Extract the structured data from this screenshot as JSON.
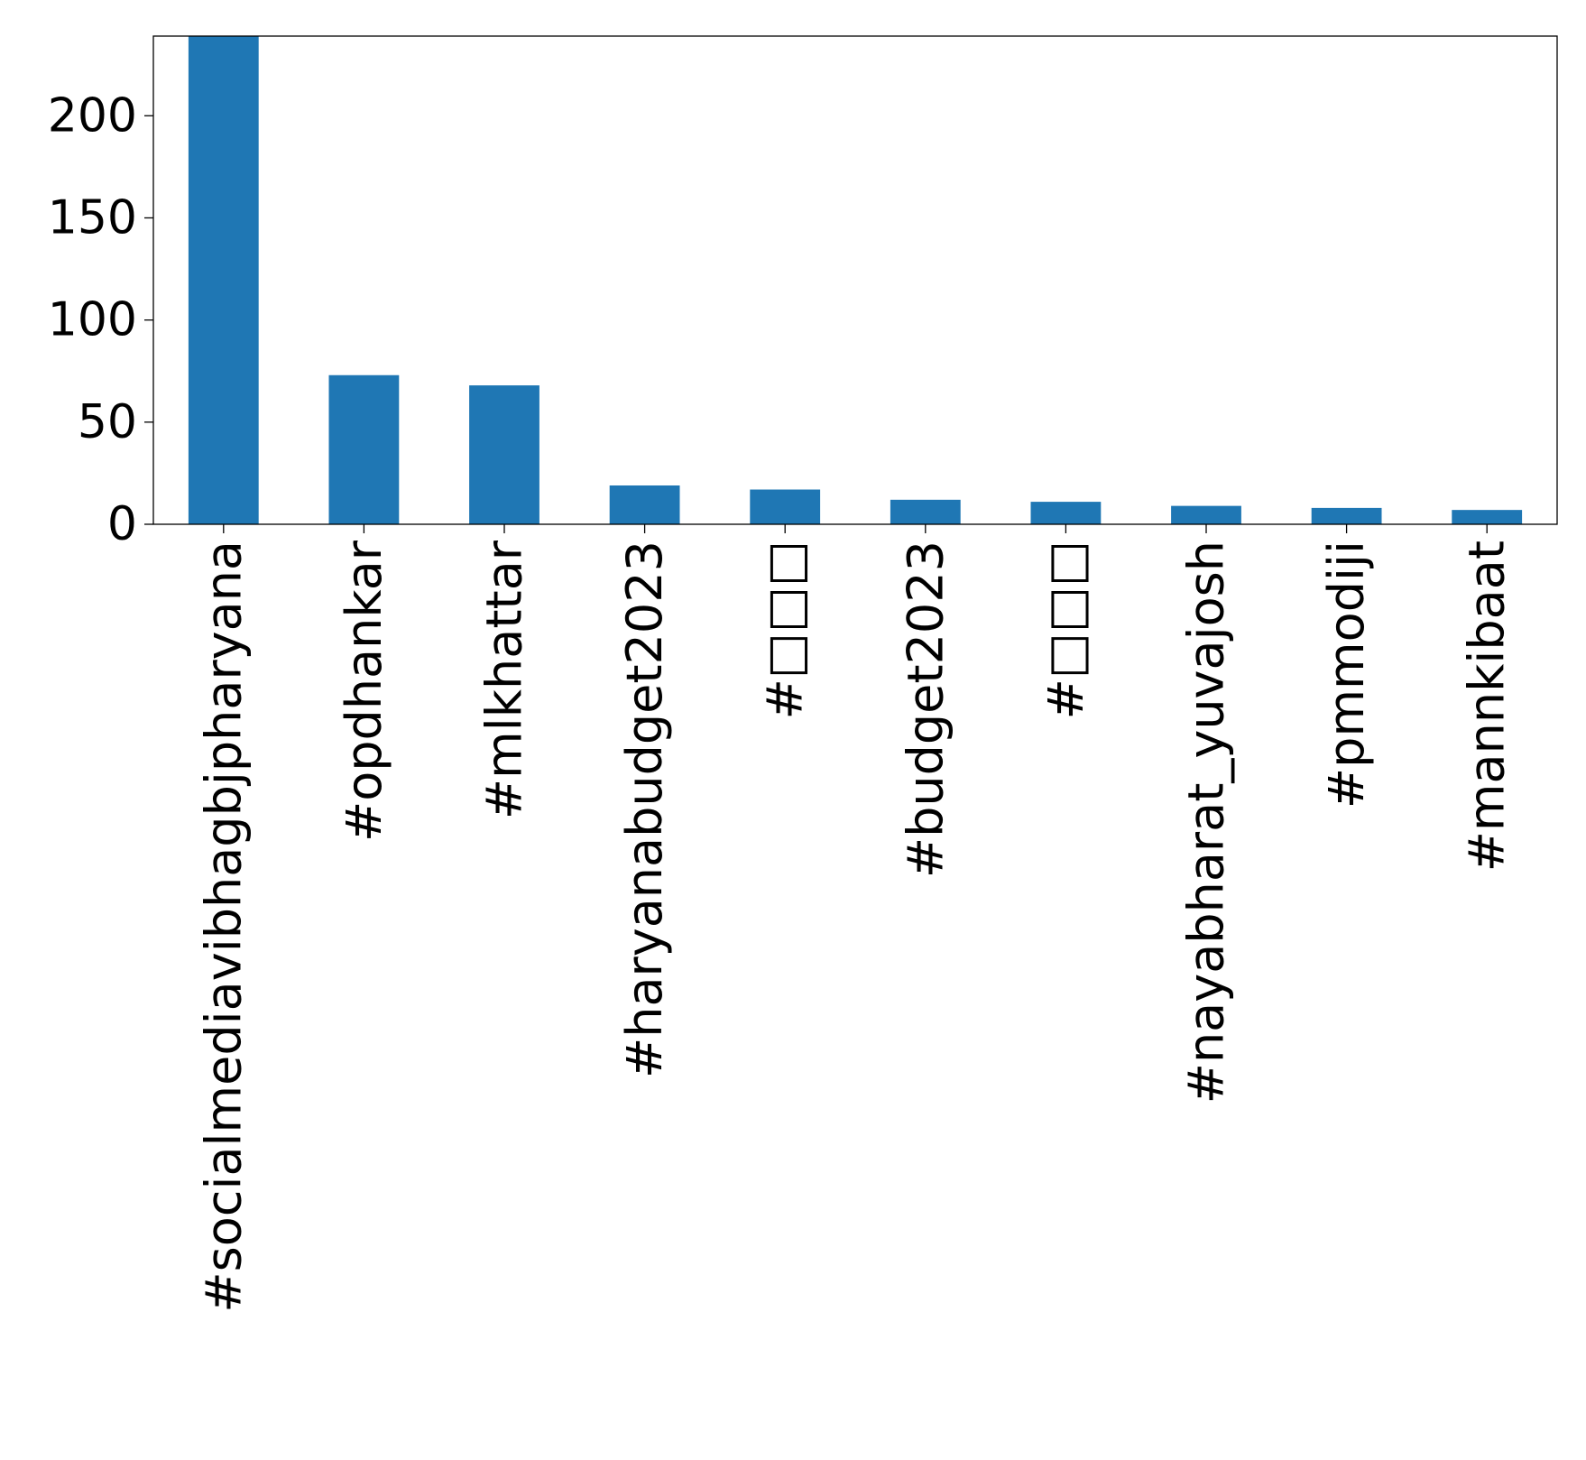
{
  "chart_data": {
    "type": "bar",
    "title": "",
    "xlabel": "",
    "ylabel": "",
    "categories": [
      "#socialmediavibhagbjpharyana",
      "#opdhankar",
      "#mlkhattar",
      "#haryanabudget2023",
      "#□□□",
      "#budget2023",
      "#□□□",
      "#nayabharat_yuvajosh",
      "#pmmodiji",
      "#mannkibaat"
    ],
    "values": [
      239,
      73,
      68,
      19,
      17,
      12,
      11,
      9,
      8,
      7
    ],
    "ylim": [
      0,
      239
    ],
    "yticks": [
      0,
      50,
      100,
      150,
      200
    ],
    "bar_color": "#1f77b4",
    "grid": false,
    "legend": "none"
  }
}
